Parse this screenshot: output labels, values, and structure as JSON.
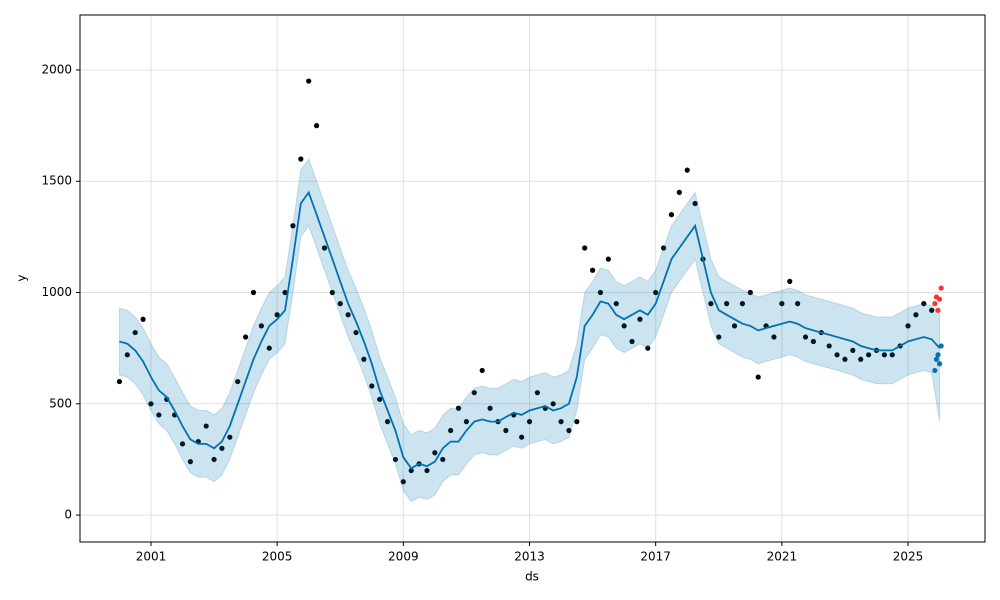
{
  "chart_data": {
    "type": "line",
    "xlabel": "ds",
    "ylabel": "y",
    "xlim": [
      1998.75,
      2027.44
    ],
    "ylim": [
      -121,
      2247
    ],
    "xticks": [
      2001,
      2005,
      2009,
      2013,
      2017,
      2021,
      2025
    ],
    "yticks": [
      0,
      500,
      1000,
      1500,
      2000
    ],
    "grid": true,
    "series": [
      {
        "type": "scatter",
        "color": "#000000",
        "x": [
          2000,
          2000.25,
          2000.5,
          2000.75,
          2001,
          2001.25,
          2001.5,
          2001.75,
          2002,
          2002.25,
          2002.5,
          2002.75,
          2003,
          2003.25,
          2003.5,
          2003.75,
          2004,
          2004.25,
          2004.5,
          2004.75,
          2005,
          2005.25,
          2005.5,
          2005.75,
          2006,
          2006.25,
          2006.5,
          2006.75,
          2007,
          2007.25,
          2007.5,
          2007.75,
          2008,
          2008.25,
          2008.5,
          2008.75,
          2009,
          2009.25,
          2009.5,
          2009.75,
          2010,
          2010.25,
          2010.5,
          2010.75,
          2011,
          2011.25,
          2011.5,
          2011.75,
          2012,
          2012.25,
          2012.5,
          2012.75,
          2013,
          2013.25,
          2013.5,
          2013.75,
          2014,
          2014.25,
          2014.5,
          2014.75,
          2015,
          2015.25,
          2015.5,
          2015.75,
          2016,
          2016.25,
          2016.5,
          2016.75,
          2017,
          2017.25,
          2017.5,
          2017.75,
          2018,
          2018.25,
          2018.5,
          2018.75,
          2019,
          2019.25,
          2019.5,
          2019.75,
          2020,
          2020.25,
          2020.5,
          2020.75,
          2021,
          2021.25,
          2021.5,
          2021.75,
          2022,
          2022.25,
          2022.5,
          2022.75,
          2023,
          2023.25,
          2023.5,
          2023.75,
          2024,
          2024.25,
          2024.5,
          2024.75,
          2025,
          2025.25,
          2025.5,
          2025.75
        ],
        "values": [
          600,
          720,
          820,
          880,
          500,
          450,
          520,
          450,
          320,
          240,
          330,
          400,
          250,
          300,
          350,
          600,
          800,
          1000,
          850,
          750,
          900,
          1000,
          1300,
          1600,
          1950,
          1750,
          1200,
          1000,
          950,
          900,
          820,
          700,
          580,
          520,
          420,
          250,
          150,
          200,
          230,
          200,
          280,
          250,
          380,
          480,
          420,
          550,
          650,
          480,
          420,
          380,
          450,
          350,
          420,
          550,
          480,
          500,
          420,
          380,
          420,
          1200,
          1100,
          1000,
          1150,
          950,
          850,
          780,
          880,
          750,
          1000,
          1200,
          1350,
          1450,
          1550,
          1400,
          1150,
          950,
          800,
          950,
          850,
          950,
          1000,
          620,
          850,
          800,
          950,
          1050,
          950,
          800,
          780,
          820,
          760,
          720,
          700,
          740,
          700,
          720,
          740,
          720,
          720,
          760,
          850,
          900,
          950,
          920
        ]
      },
      {
        "type": "band-line",
        "color": "#0072b2",
        "band_opacity": 0.2,
        "x": [
          2000,
          2000.25,
          2000.5,
          2000.75,
          2001,
          2001.25,
          2001.5,
          2001.75,
          2002,
          2002.25,
          2002.5,
          2002.75,
          2003,
          2003.25,
          2003.5,
          2003.75,
          2004,
          2004.25,
          2004.5,
          2004.75,
          2005,
          2005.25,
          2005.5,
          2005.75,
          2006,
          2006.25,
          2006.5,
          2006.75,
          2007,
          2007.25,
          2007.5,
          2007.75,
          2008,
          2008.25,
          2008.5,
          2008.75,
          2009,
          2009.25,
          2009.5,
          2009.75,
          2010,
          2010.25,
          2010.5,
          2010.75,
          2011,
          2011.25,
          2011.5,
          2011.75,
          2012,
          2012.25,
          2012.5,
          2012.75,
          2013,
          2013.25,
          2013.5,
          2013.75,
          2014,
          2014.25,
          2014.5,
          2014.75,
          2015,
          2015.25,
          2015.5,
          2015.75,
          2016,
          2016.25,
          2016.5,
          2016.75,
          2017,
          2017.25,
          2017.5,
          2017.75,
          2018,
          2018.25,
          2018.5,
          2018.75,
          2019,
          2019.25,
          2019.5,
          2019.75,
          2020,
          2020.25,
          2020.5,
          2020.75,
          2021,
          2021.25,
          2021.5,
          2021.75,
          2022,
          2022.25,
          2022.5,
          2022.75,
          2023,
          2023.25,
          2023.5,
          2023.75,
          2024,
          2024.25,
          2024.5,
          2024.75,
          2025,
          2025.25,
          2025.5,
          2025.75,
          2026
        ],
        "values": [
          780,
          770,
          740,
          690,
          620,
          560,
          530,
          470,
          400,
          340,
          320,
          320,
          300,
          330,
          400,
          500,
          600,
          700,
          780,
          850,
          880,
          920,
          1150,
          1400,
          1450,
          1350,
          1250,
          1150,
          1050,
          950,
          870,
          780,
          680,
          560,
          470,
          380,
          260,
          210,
          230,
          220,
          240,
          300,
          330,
          330,
          380,
          420,
          430,
          420,
          420,
          440,
          460,
          450,
          470,
          480,
          490,
          470,
          480,
          500,
          620,
          850,
          900,
          960,
          950,
          900,
          880,
          900,
          920,
          900,
          950,
          1050,
          1150,
          1200,
          1250,
          1300,
          1150,
          1000,
          920,
          900,
          880,
          860,
          850,
          830,
          840,
          850,
          860,
          870,
          860,
          840,
          830,
          820,
          810,
          800,
          790,
          780,
          760,
          750,
          740,
          740,
          740,
          760,
          780,
          790,
          800,
          790,
          750
        ],
        "lower": [
          630,
          620,
          590,
          540,
          470,
          410,
          380,
          320,
          250,
          190,
          170,
          170,
          150,
          180,
          250,
          350,
          450,
          550,
          630,
          700,
          730,
          770,
          1000,
          1250,
          1300,
          1200,
          1100,
          1000,
          900,
          800,
          720,
          630,
          530,
          410,
          320,
          230,
          110,
          60,
          80,
          70,
          90,
          150,
          180,
          180,
          230,
          270,
          280,
          270,
          270,
          290,
          310,
          300,
          320,
          330,
          340,
          320,
          330,
          350,
          470,
          700,
          750,
          810,
          800,
          750,
          730,
          750,
          770,
          750,
          800,
          900,
          1000,
          1050,
          1100,
          1150,
          1000,
          850,
          770,
          750,
          730,
          710,
          700,
          680,
          690,
          700,
          710,
          720,
          710,
          690,
          680,
          670,
          660,
          650,
          640,
          630,
          610,
          600,
          590,
          590,
          590,
          610,
          630,
          640,
          650,
          640,
          420
        ],
        "upper": [
          930,
          920,
          890,
          840,
          770,
          710,
          680,
          620,
          550,
          490,
          470,
          470,
          450,
          480,
          550,
          650,
          750,
          850,
          930,
          1000,
          1030,
          1070,
          1300,
          1550,
          1600,
          1500,
          1400,
          1300,
          1200,
          1100,
          1020,
          930,
          830,
          710,
          620,
          530,
          410,
          360,
          380,
          370,
          390,
          450,
          480,
          480,
          530,
          570,
          580,
          570,
          570,
          590,
          610,
          600,
          620,
          630,
          640,
          620,
          630,
          650,
          770,
          1000,
          1050,
          1110,
          1100,
          1050,
          1030,
          1050,
          1070,
          1050,
          1100,
          1200,
          1300,
          1350,
          1400,
          1450,
          1300,
          1150,
          1070,
          1050,
          1030,
          1010,
          1000,
          980,
          990,
          1000,
          1010,
          1020,
          1010,
          990,
          980,
          970,
          960,
          950,
          940,
          930,
          910,
          900,
          890,
          890,
          890,
          910,
          930,
          940,
          950,
          940,
          900
        ]
      },
      {
        "type": "scatter",
        "color": "#ff3333",
        "x": [
          2025.85,
          2025.9,
          2025.95,
          2026,
          2026.05
        ],
        "values": [
          950,
          980,
          920,
          970,
          1020
        ]
      },
      {
        "type": "scatter",
        "color": "#0072b2",
        "x": [
          2025.85,
          2025.9,
          2025.95,
          2026,
          2026.05
        ],
        "values": [
          650,
          700,
          720,
          680,
          760
        ]
      }
    ]
  }
}
